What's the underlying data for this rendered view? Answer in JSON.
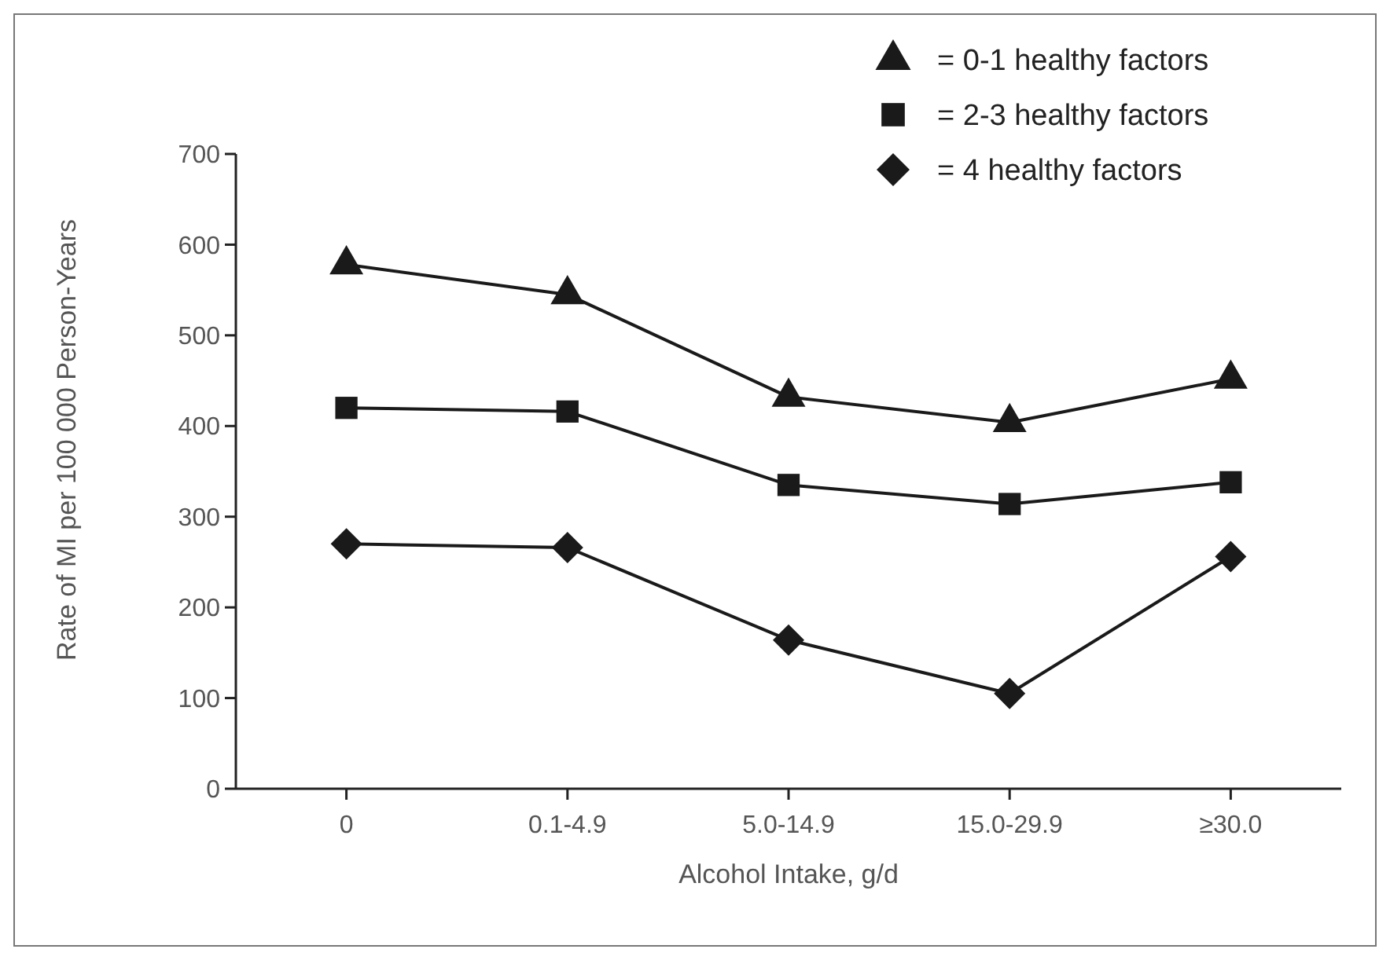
{
  "chart_data": {
    "type": "line",
    "xlabel": "Alcohol Intake, g/d",
    "ylabel": "Rate of MI per 100 000 Person-Years",
    "categories": [
      "0",
      "0.1-4.9",
      "5.0-14.9",
      "15.0-29.9",
      "≥30.0"
    ],
    "series": [
      {
        "name": "= 0-1 healthy factors",
        "color": "#1a1a1a",
        "marker": "triangle",
        "values": [
          578,
          545,
          432,
          404,
          452
        ]
      },
      {
        "name": "= 2-3 healthy factors",
        "color": "#1a1a1a",
        "marker": "square",
        "values": [
          420,
          416,
          335,
          314,
          338
        ]
      },
      {
        "name": "= 4 healthy factors",
        "color": "#1a1a1a",
        "marker": "diamond",
        "values": [
          270,
          266,
          164,
          105,
          256
        ]
      }
    ],
    "ylim": [
      0,
      700
    ],
    "yticks": [
      0,
      100,
      200,
      300,
      400,
      500,
      600,
      700
    ],
    "grid": false,
    "legend": "top right",
    "line_style": "solid"
  }
}
